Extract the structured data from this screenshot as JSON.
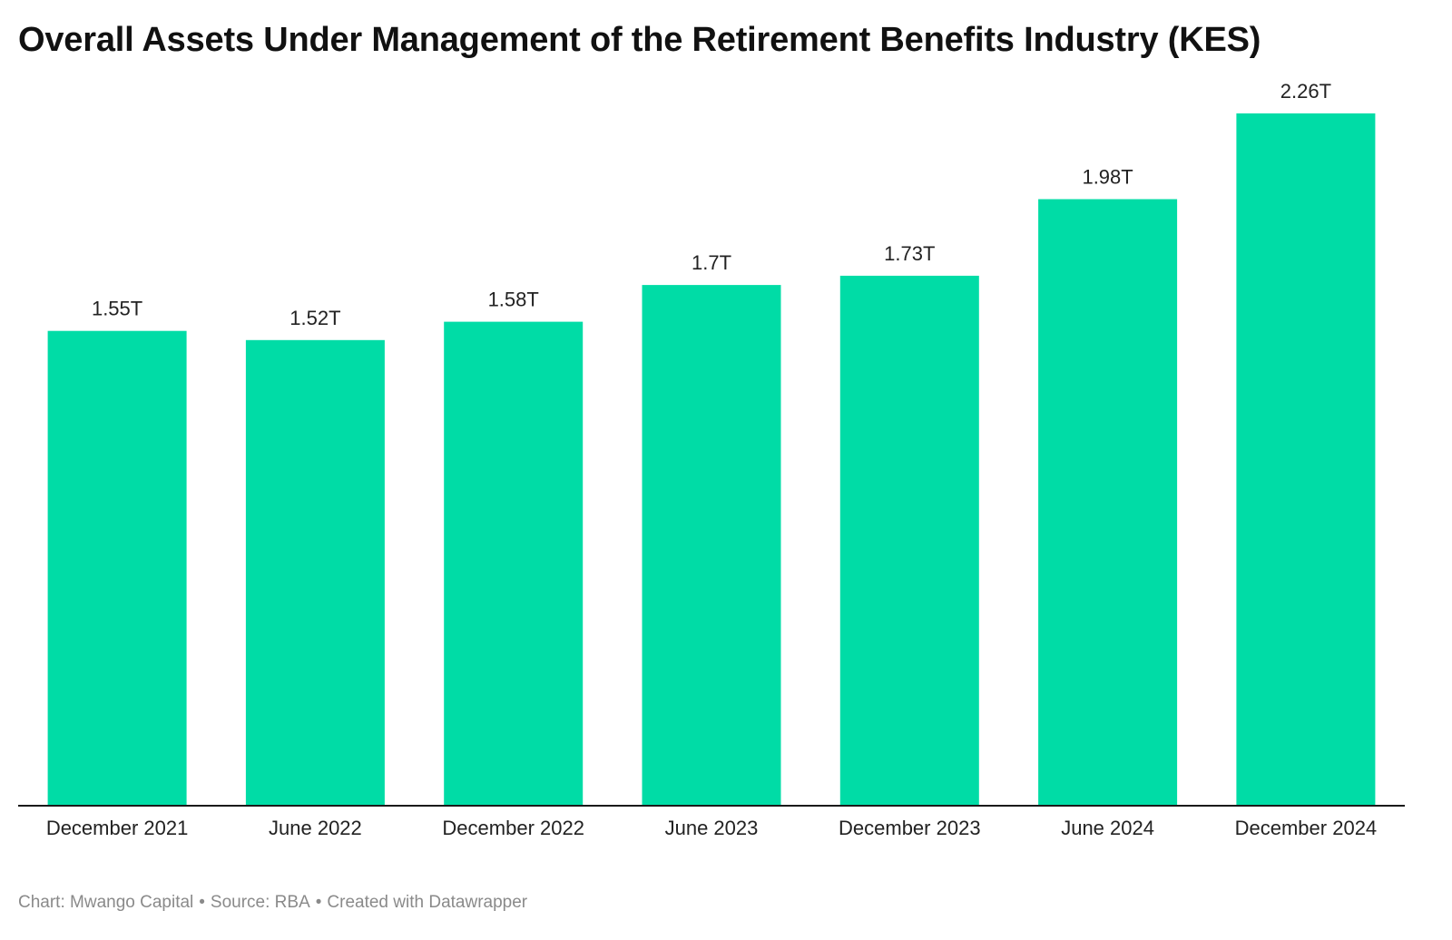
{
  "title": "Overall Assets Under Management of the Retirement Benefits Industry (KES)",
  "footer": {
    "chart_credit": "Chart: Mwango Capital",
    "source": "Source: RBA",
    "created_with": "Created with Datawrapper",
    "separator": "•"
  },
  "colors": {
    "bar": "#00dca6",
    "axis": "#1a1a1a",
    "text": "#222222",
    "footer": "#8a8a8a"
  },
  "chart_data": {
    "type": "bar",
    "title": "Overall Assets Under Management of the Retirement Benefits Industry (KES)",
    "xlabel": "",
    "ylabel": "",
    "categories": [
      "December 2021",
      "June 2022",
      "December 2022",
      "June 2023",
      "December 2023",
      "June 2024",
      "December 2024"
    ],
    "values": [
      1.55,
      1.52,
      1.58,
      1.7,
      1.73,
      1.98,
      2.26
    ],
    "value_labels": [
      "1.55T",
      "1.52T",
      "1.58T",
      "1.7T",
      "1.73T",
      "1.98T",
      "2.26T"
    ],
    "unit": "T",
    "ylim": [
      0,
      2.26
    ],
    "grid": false,
    "legend": "none"
  }
}
